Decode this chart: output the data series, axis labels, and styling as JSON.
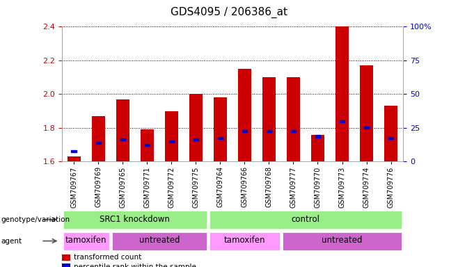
{
  "title": "GDS4095 / 206386_at",
  "samples": [
    "GSM709767",
    "GSM709769",
    "GSM709765",
    "GSM709771",
    "GSM709772",
    "GSM709775",
    "GSM709764",
    "GSM709766",
    "GSM709768",
    "GSM709777",
    "GSM709770",
    "GSM709773",
    "GSM709774",
    "GSM709776"
  ],
  "bar_values": [
    1.63,
    1.87,
    1.97,
    1.79,
    1.9,
    2.0,
    1.98,
    2.15,
    2.1,
    2.1,
    1.76,
    2.4,
    2.17,
    1.93
  ],
  "blue_values": [
    1.66,
    1.71,
    1.73,
    1.7,
    1.72,
    1.73,
    1.74,
    1.78,
    1.78,
    1.78,
    1.75,
    1.84,
    1.8,
    1.74
  ],
  "ylim_left": [
    1.6,
    2.4
  ],
  "ylim_right": [
    0,
    100
  ],
  "yticks_left": [
    1.6,
    1.8,
    2.0,
    2.2,
    2.4
  ],
  "yticks_right": [
    0,
    25,
    50,
    75,
    100
  ],
  "ytick_labels_right": [
    "0",
    "25",
    "50",
    "75",
    "100%"
  ],
  "bar_color": "#cc0000",
  "blue_color": "#0000cc",
  "base_value": 1.6,
  "genotype_groups": [
    {
      "label": "SRC1 knockdown",
      "start": 0,
      "end": 6
    },
    {
      "label": "control",
      "start": 6,
      "end": 14
    }
  ],
  "agent_groups": [
    {
      "label": "tamoxifen",
      "start": 0,
      "end": 2,
      "color": "#ff99ff"
    },
    {
      "label": "untreated",
      "start": 2,
      "end": 6,
      "color": "#cc66cc"
    },
    {
      "label": "tamoxifen",
      "start": 6,
      "end": 9,
      "color": "#ff99ff"
    },
    {
      "label": "untreated",
      "start": 9,
      "end": 14,
      "color": "#cc66cc"
    }
  ],
  "genotype_color": "#99ee88",
  "legend_red": "transformed count",
  "legend_blue": "percentile rank within the sample",
  "title_fontsize": 11,
  "axis_color_left": "#cc0000",
  "axis_color_right": "#0000cc",
  "bg_color": "#e8e8e8"
}
